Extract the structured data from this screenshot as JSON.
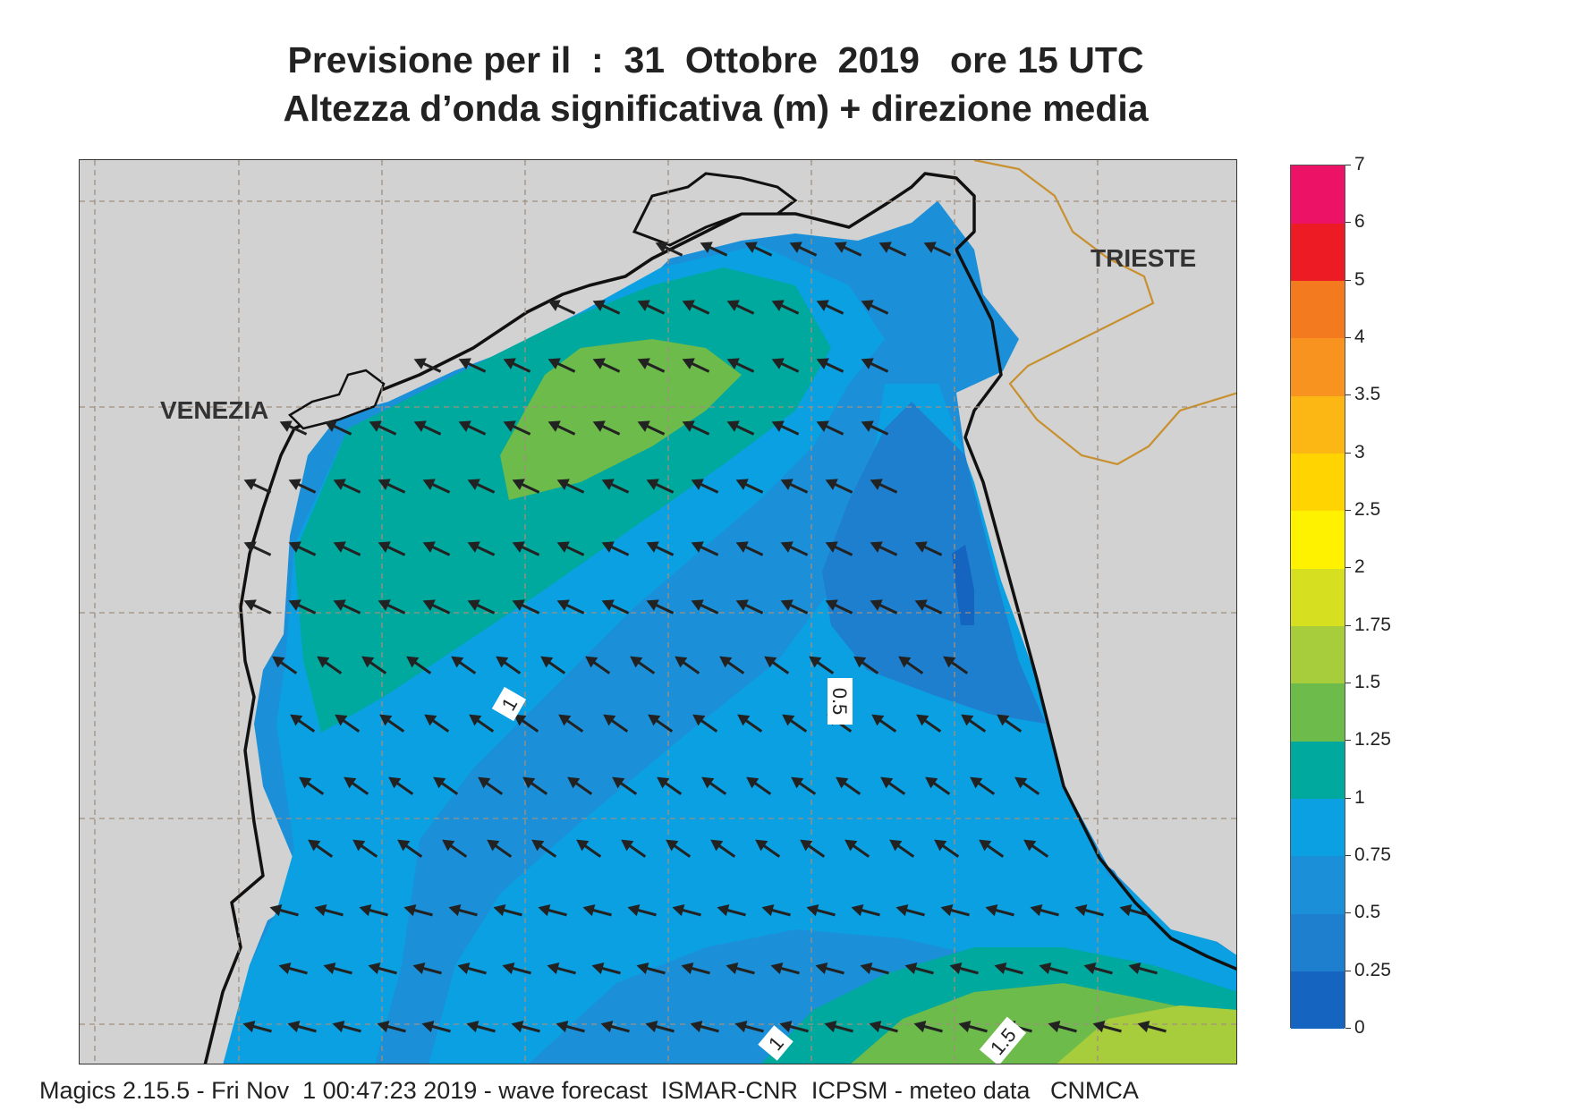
{
  "title_line1": "Previsione per il  :  31  Ottobre  2019   ore 15 UTC",
  "title_line2": "Altezza d’onda significativa (m) + direzione media",
  "places": [
    {
      "name": "VENEZIA"
    },
    {
      "name": "TRIESTE"
    }
  ],
  "contour_labels": [
    "1",
    "0.5",
    "1",
    "1.5"
  ],
  "legend": {
    "ticks": [
      "0",
      "0.25",
      "0.5",
      "0.75",
      "1",
      "1.25",
      "1.5",
      "1.75",
      "2",
      "2.5",
      "3",
      "3.5",
      "4",
      "5",
      "6",
      "7"
    ],
    "colors": [
      "#1565c0",
      "#1e7fcf",
      "#1b90d8",
      "#0aa0e2",
      "#00a99d",
      "#6cbb4b",
      "#a8cd3c",
      "#d6e021",
      "#fff200",
      "#ffd400",
      "#fdb714",
      "#f7931e",
      "#f47a20",
      "#ed1c24",
      "#ec1366"
    ]
  },
  "footer": "Magics 2.15.5 - Fri Nov  1 00:47:23 2019 - wave forecast  ISMAR-CNR  ICPSM - meteo data   CNMCA",
  "colors": {
    "land": "#d2d2d2",
    "coast": "#111111",
    "border": "#c8902e",
    "grid": "#a09080",
    "arrow": "#222222"
  }
}
